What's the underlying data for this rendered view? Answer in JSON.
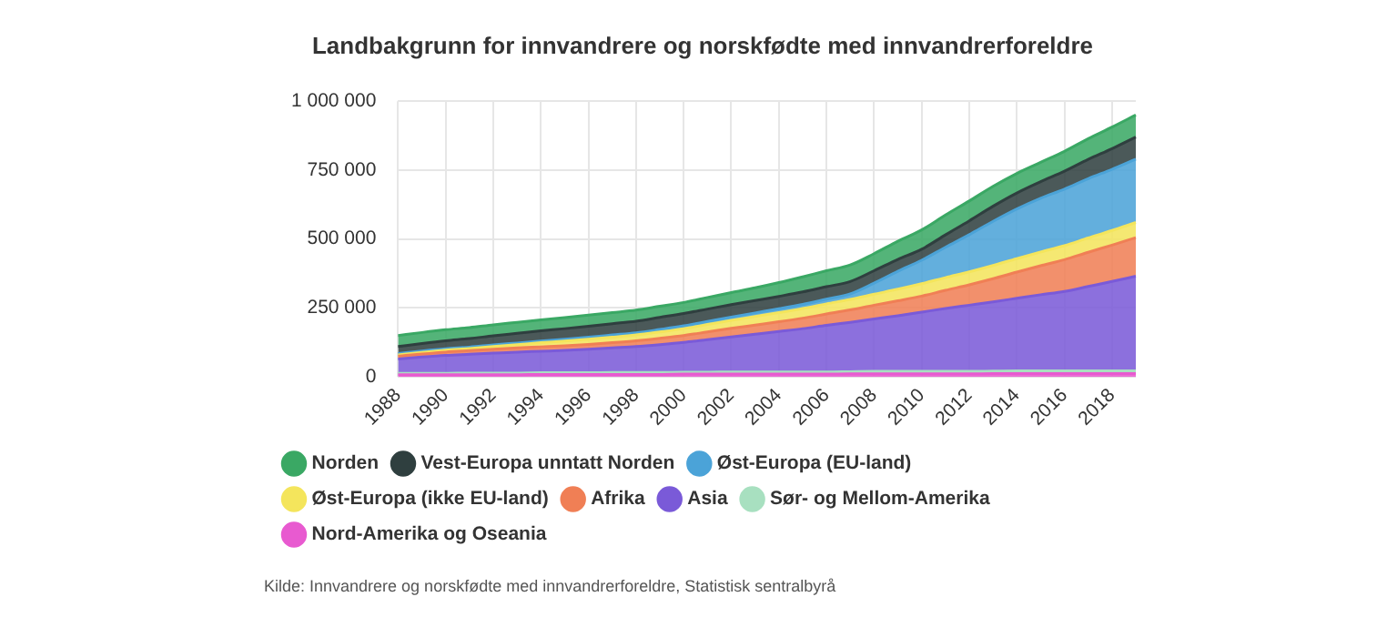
{
  "chart_data": {
    "type": "area",
    "stacked": true,
    "title": "Landbakgrunn for innvandrere og norskfødte med innvandrerforeldre",
    "categories": [
      "1988",
      null,
      "1990",
      null,
      "1992",
      null,
      "1994",
      null,
      "1996",
      null,
      "1998",
      null,
      "2000",
      null,
      "2002",
      null,
      "2004",
      null,
      "2006",
      null,
      "2008",
      null,
      "2010",
      null,
      "2012",
      null,
      "2014",
      null,
      "2016",
      null,
      "2018",
      null
    ],
    "ylim": [
      0,
      1000000
    ],
    "yticks": [
      0,
      {
        "value": 250000,
        "label": "250 000"
      },
      {
        "value": 500000,
        "label": "500 000"
      },
      {
        "value": 750000,
        "label": "750 000"
      },
      {
        "value": 1000000,
        "label": "1 000 000"
      }
    ],
    "grid": true,
    "legend": "bottom",
    "marker": "none",
    "series": [
      {
        "name": "Nord-Amerika og Oseania",
        "color": "#e85ad0",
        "values": [
          8000,
          8000,
          8000,
          8000,
          8000,
          8000,
          9000,
          9000,
          9000,
          9000,
          9000,
          9000,
          10000,
          10000,
          10000,
          10000,
          10000,
          10000,
          10000,
          11000,
          11000,
          11000,
          11000,
          11000,
          11000,
          12000,
          12000,
          12000,
          12000,
          12000,
          12000,
          12000
        ]
      },
      {
        "name": "Sør- og Mellom-Amerika",
        "color": "#a8e0c0",
        "values": [
          5000,
          5000,
          5000,
          6000,
          6000,
          6000,
          6000,
          6000,
          6000,
          7000,
          7000,
          7000,
          7000,
          7000,
          8000,
          8000,
          8000,
          8000,
          8000,
          8000,
          9000,
          9000,
          9000,
          9000,
          9000,
          9000,
          10000,
          10000,
          10000,
          10000,
          10000,
          10000
        ]
      },
      {
        "name": "Asia",
        "color": "#7a5ad8",
        "values": [
          52000,
          59000,
          65000,
          68000,
          72000,
          76000,
          78000,
          81000,
          85000,
          89000,
          94000,
          101000,
          108000,
          118000,
          127000,
          137000,
          147000,
          157000,
          169000,
          179000,
          190000,
          202000,
          215000,
          228000,
          240000,
          251000,
          263000,
          276000,
          288000,
          306000,
          324000,
          343000
        ]
      },
      {
        "name": "Afrika",
        "color": "#f07f55",
        "values": [
          10000,
          11000,
          12000,
          13000,
          14000,
          15000,
          16000,
          17000,
          18000,
          19000,
          21000,
          23000,
          25000,
          28000,
          31000,
          33000,
          35000,
          38000,
          41000,
          45000,
          50000,
          54000,
          58000,
          66000,
          74000,
          84000,
          95000,
          105000,
          115000,
          124000,
          132000,
          140000
        ]
      },
      {
        "name": "Øst-Europa (ikke EU-land)",
        "color": "#f4e55c",
        "values": [
          5000,
          6000,
          7000,
          8000,
          10000,
          12000,
          15000,
          17000,
          19000,
          20000,
          21000,
          23000,
          25000,
          27000,
          29000,
          31000,
          33000,
          35000,
          37000,
          38000,
          40000,
          42000,
          45000,
          46000,
          47000,
          48000,
          49000,
          50000,
          51000,
          52000,
          53000,
          55000
        ]
      },
      {
        "name": "Øst-Europa (EU-land)",
        "color": "#4ba3d8",
        "values": [
          5000,
          5000,
          5000,
          5000,
          6000,
          6000,
          6000,
          7000,
          7000,
          8000,
          8000,
          9000,
          10000,
          11000,
          12000,
          13000,
          14000,
          15000,
          17000,
          20000,
          40000,
          65000,
          85000,
          110000,
          135000,
          160000,
          180000,
          195000,
          205000,
          215000,
          222000,
          230000
        ]
      },
      {
        "name": "Vest-Europa unntatt Norden",
        "color": "#2f3f3f",
        "values": [
          25000,
          27000,
          29000,
          31000,
          33000,
          35000,
          37000,
          38000,
          40000,
          41000,
          42000,
          44000,
          45000,
          45000,
          45000,
          45000,
          45000,
          45000,
          45000,
          45000,
          45000,
          43000,
          40000,
          45000,
          50000,
          55000,
          58000,
          60000,
          65000,
          70000,
          75000,
          80000
        ]
      },
      {
        "name": "Norden",
        "color": "#3aa864",
        "values": [
          40000,
          40000,
          40000,
          40000,
          40000,
          40000,
          40000,
          40000,
          40000,
          40000,
          40000,
          40000,
          40000,
          42000,
          44000,
          46000,
          50000,
          55000,
          58000,
          60000,
          62000,
          66000,
          70000,
          72000,
          72000,
          72000,
          71000,
          70000,
          72000,
          75000,
          78000,
          80000
        ]
      }
    ],
    "annotations": [
      "Kilde: Innvandrere og norskfødte med innvandrerforeldre, Statistisk sentralbyrå"
    ]
  }
}
